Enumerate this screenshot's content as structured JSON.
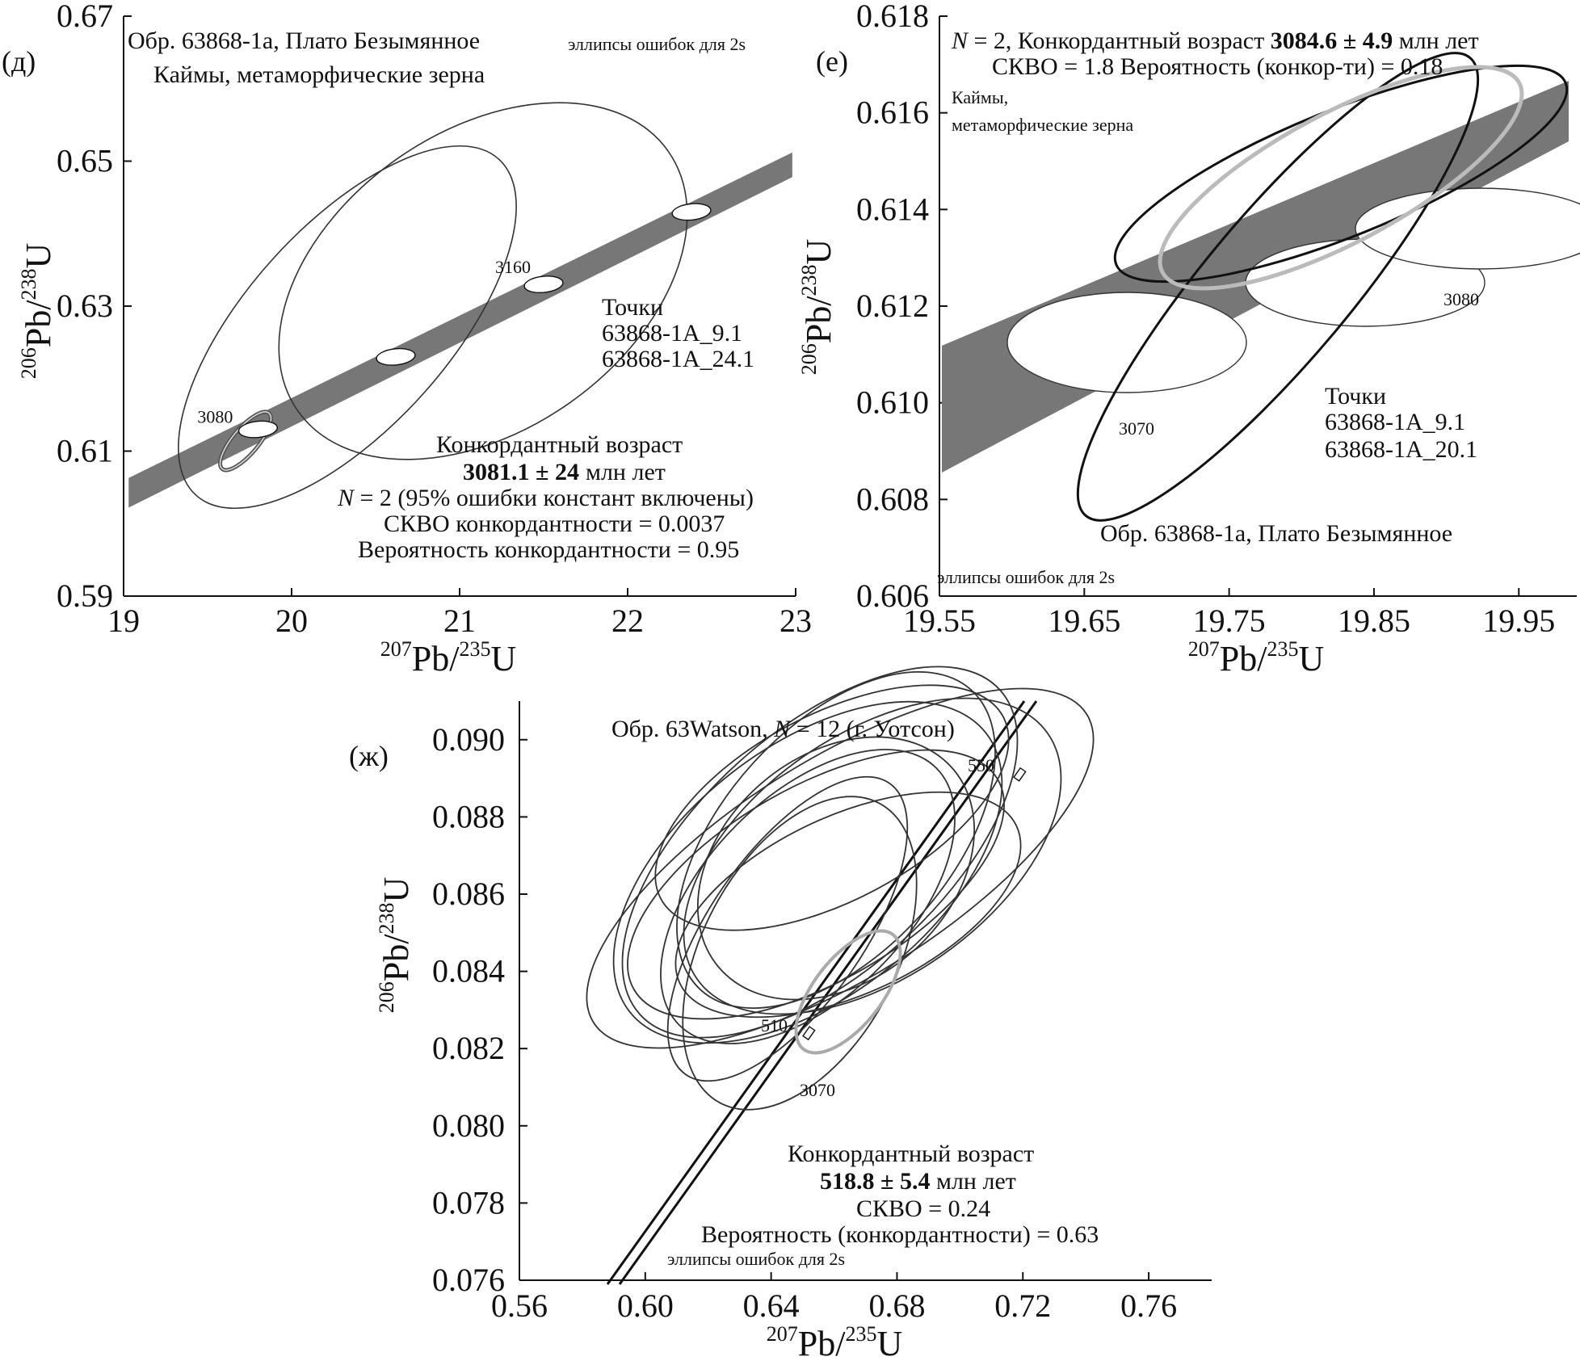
{
  "chart_data": [
    {
      "type": "scatter",
      "panel_label": "(д)",
      "xlim": [
        19,
        23
      ],
      "ylim": [
        0.59,
        0.67
      ],
      "xticks": [
        "19",
        "20",
        "21",
        "22",
        "23"
      ],
      "yticks": [
        "0.59",
        "0.61",
        "0.63",
        "0.65",
        "0.67"
      ],
      "xlabel": {
        "pre1": "207",
        "base1": "Pb/",
        "pre2": "235",
        "base2": "U"
      },
      "ylabel": {
        "pre1": "206",
        "base1": "Pb/",
        "pre2": "238",
        "base2": "U"
      },
      "title_line1": "Обр. 63868-1а, Плато Безымянное",
      "title_line2": "Каймы, метаморфические зерна",
      "ellipse_note": "эллипсы ошибок для 2s",
      "points_title": "Точки",
      "points": [
        "63868-1A_9.1",
        "63868-1A_24.1"
      ],
      "concordia_markers": [
        {
          "age": "3080",
          "x": 19.8,
          "y": 0.613
        },
        {
          "age": "3160",
          "x": 21.5,
          "y": 0.633
        }
      ],
      "age_ticks": [
        {
          "x": 20.62,
          "y": 0.623
        },
        {
          "x": 22.38,
          "y": 0.643
        }
      ],
      "ellipses": [
        {
          "cx": 21.2,
          "cy": 0.635,
          "rx_deg_note": "rotated"
        },
        {
          "cx": 20.6,
          "cy": 0.621
        },
        {
          "cx": 19.8,
          "cy": 0.612
        }
      ],
      "result": {
        "heading": "Конкордантный возраст",
        "age": "3081.1 ± 24",
        "age_unit": "млн лет",
        "n_label": "N",
        "n_text": " = 2 (95% ошибки констант включены)",
        "mswd": "СКВО конкордантности = 0.0037",
        "prob": "Вероятность конкордантности = 0.95"
      }
    },
    {
      "type": "scatter",
      "panel_label": "(е)",
      "xlim": [
        19.55,
        19.99
      ],
      "ylim": [
        0.606,
        0.618
      ],
      "xticks": [
        "19.55",
        "19.65",
        "19.75",
        "19.85",
        "19.95"
      ],
      "yticks": [
        "0.606",
        "0.608",
        "0.610",
        "0.612",
        "0.614",
        "0.616",
        "0.618"
      ],
      "xlabel": {
        "pre1": "207",
        "base1": "Pb/",
        "pre2": "235",
        "base2": "U"
      },
      "ylabel": {
        "pre1": "206",
        "base1": "Pb/",
        "pre2": "238",
        "base2": "U"
      },
      "header_n_label": "N",
      "header_n_text": " = 2, Конкордантный возраст ",
      "header_age": "3084.6 ± 4.9",
      "header_unit": " млн лет",
      "header_line2": "СКВО = 1.8 Вероятность (конкор-ти) = 0.18",
      "rims_line1": "Каймы,",
      "rims_line2": "метаморфические зерна",
      "points_title": "Точки",
      "points": [
        "63868-1A_9.1",
        "63868-1A_20.1"
      ],
      "sample": "Обр. 63868-1а, Плато Безымянное",
      "ellipse_note": "эллипсы ошибок для 2s",
      "concordia_markers": [
        {
          "age": "3070",
          "x": 19.663,
          "y": 0.6114
        },
        {
          "age": "3080",
          "x": 19.77,
          "y": 0.6125
        }
      ]
    },
    {
      "type": "scatter",
      "panel_label": "(ж)",
      "xlim": [
        0.56,
        0.78
      ],
      "ylim": [
        0.076,
        0.091
      ],
      "xticks": [
        "0.56",
        "0.60",
        "0.64",
        "0.68",
        "0.72",
        "0.76"
      ],
      "yticks": [
        "0.076",
        "0.078",
        "0.080",
        "0.082",
        "0.084",
        "0.086",
        "0.088",
        "0.090"
      ],
      "xlabel": {
        "pre1": "207",
        "base1": "Pb/",
        "pre2": "235",
        "base2": "U"
      },
      "ylabel": {
        "pre1": "206",
        "base1": "Pb/",
        "pre2": "238",
        "base2": "U"
      },
      "title_pre": "Обр. 63Watson, ",
      "title_n": "N",
      "title_post": " = 12 (г. Уотсон)",
      "concordia_markers": [
        {
          "age": "550",
          "x": 0.719,
          "y": 0.0891
        },
        {
          "age": "510",
          "x": 0.652,
          "y": 0.0824
        }
      ],
      "label_3070": "3070",
      "ellipse_count": 12,
      "result": {
        "heading": "Конкордантный возраст",
        "age": "518.8 ± 5.4",
        "age_unit": " млн лет",
        "mswd": "СКВО = 0.24",
        "prob": "Вероятность (конкордантности) = 0.63"
      },
      "ellipse_note": "эллипсы ошибок для 2s"
    }
  ]
}
